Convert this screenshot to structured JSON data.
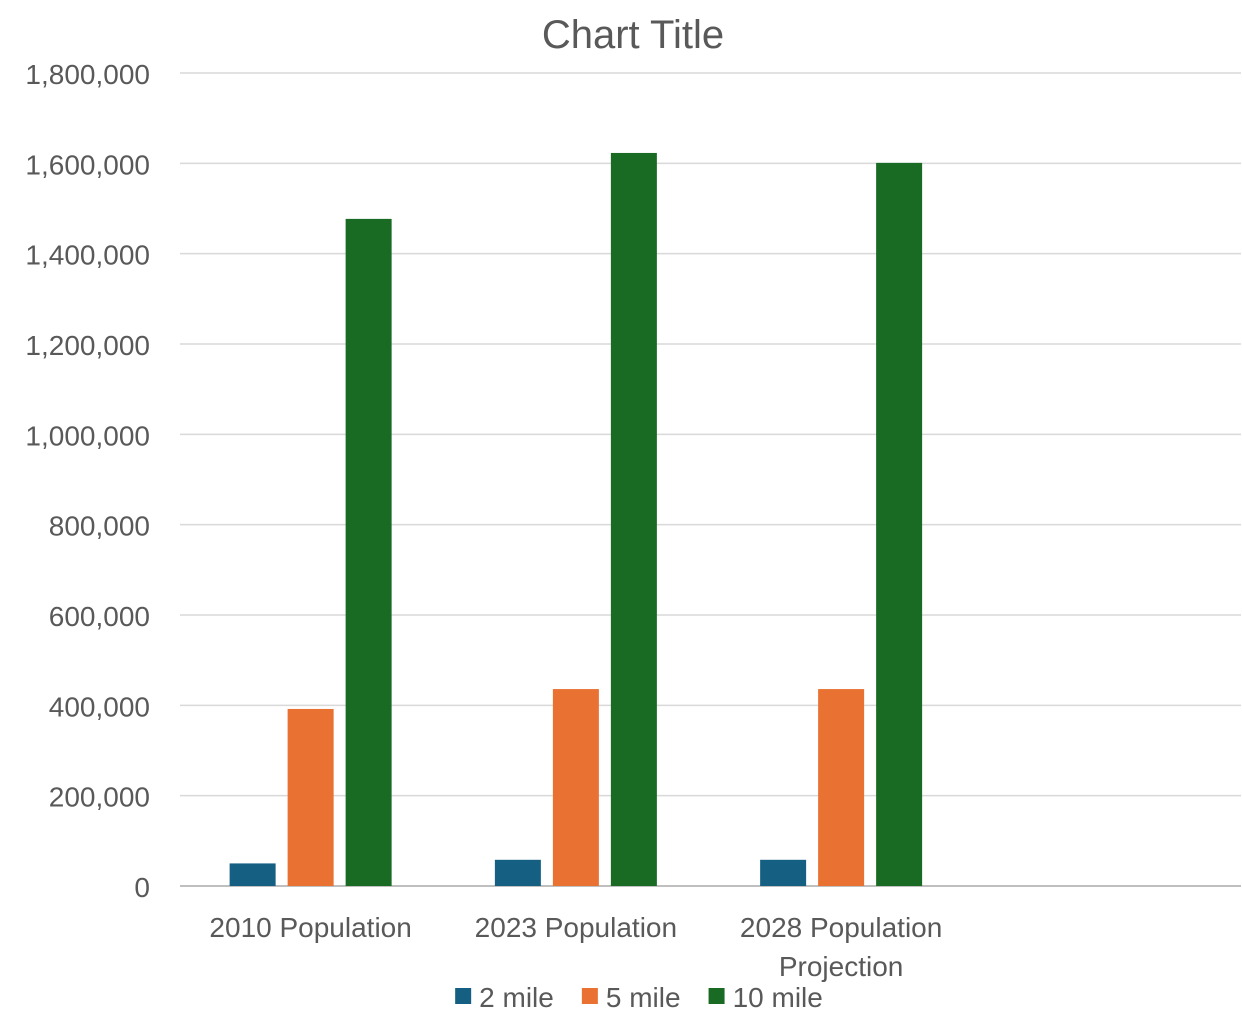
{
  "chart_data": {
    "type": "bar",
    "title": "Chart Title",
    "xlabel": "",
    "ylabel": "",
    "categories": [
      [
        "2010 Population"
      ],
      [
        "2023 Population"
      ],
      [
        "2028 Population",
        "Projection"
      ]
    ],
    "series": [
      {
        "name": "2 mile",
        "color": "#156082",
        "values": [
          50000,
          58000,
          58000
        ]
      },
      {
        "name": "5 mile",
        "color": "#E97132",
        "values": [
          392000,
          436000,
          436000
        ]
      },
      {
        "name": "10 mile",
        "color": "#196B24",
        "values": [
          1477000,
          1623000,
          1601000
        ]
      }
    ],
    "ylim": [
      0,
      1800000
    ],
    "yticks": [
      0,
      200000,
      400000,
      600000,
      800000,
      1000000,
      1200000,
      1400000,
      1600000,
      1800000
    ],
    "ytick_labels": [
      "0",
      "200,000",
      "400,000",
      "600,000",
      "800,000",
      "1,000,000",
      "1,200,000",
      "1,400,000",
      "1,600,000",
      "1,800,000"
    ],
    "grid": true,
    "legend_position": "bottom",
    "category_slots": 4
  }
}
